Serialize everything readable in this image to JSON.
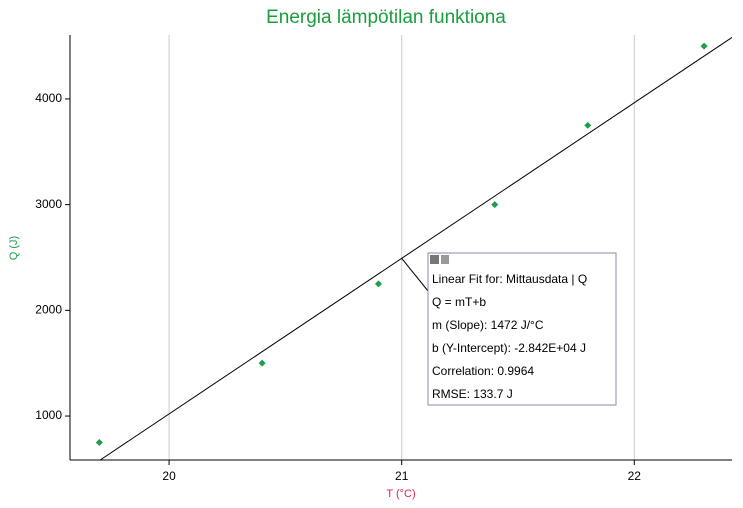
{
  "chart_data": {
    "type": "scatter",
    "title": "Energia lämpötilan funktiona",
    "x_label": "T (°C)",
    "y_label": "Q (J)",
    "series": [
      {
        "name": "Mittausdata",
        "color": "#1e9e4a",
        "x": [
          19.7,
          20.4,
          20.9,
          21.4,
          21.8,
          22.3
        ],
        "values": [
          750,
          1500,
          2250,
          3000,
          3750,
          4500
        ]
      }
    ],
    "fit": {
      "slope": 1472,
      "intercept": -28420,
      "anchor_x": 21
    },
    "annotation": [
      "Linear Fit for: Mittausdata | Q",
      "Q = mT+b",
      "m (Slope): 1472 J/°C",
      "b (Y-Intercept): -2.842E+04 J",
      "Correlation: 0.9964",
      "RMSE: 133.7 J"
    ],
    "xlim": [
      19.574,
      22.42
    ],
    "ylim": [
      584,
      4605
    ],
    "xticks": [
      20,
      21,
      22
    ],
    "yticks": [
      1000,
      2000,
      3000,
      4000
    ],
    "grid": "x"
  }
}
